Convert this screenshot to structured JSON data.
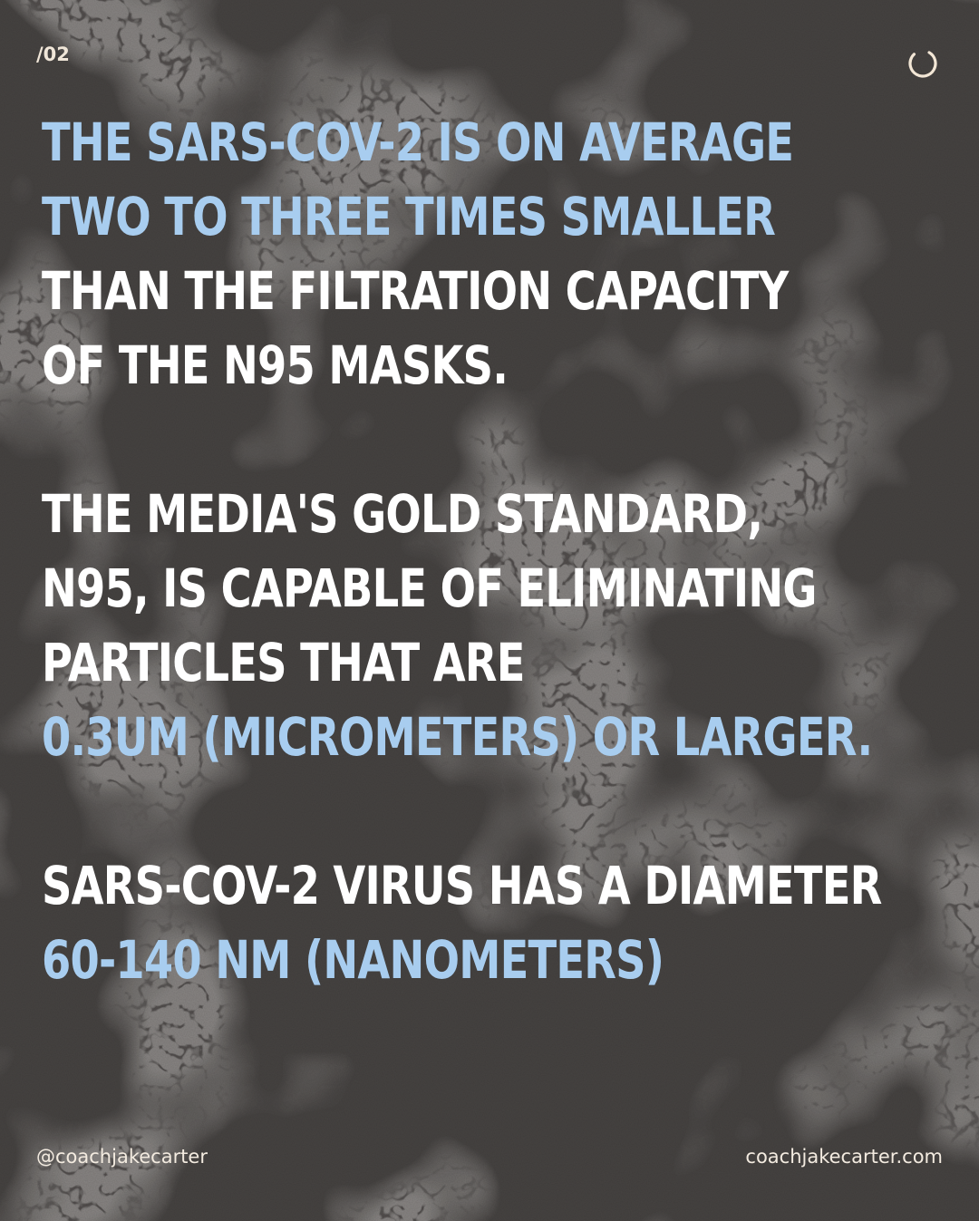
{
  "page": {
    "number": "/02"
  },
  "headline": {
    "lines": [
      {
        "text": "THE SARS-COV-2 IS ON AVERAGE",
        "color": "#a8cdef"
      },
      {
        "text": "TWO TO THREE TIMES SMALLER",
        "color": "#a8cdef"
      },
      {
        "text": "THAN THE FILTRATION CAPACITY",
        "color": "#ffffff"
      },
      {
        "text": "OF THE N95 MASKS.",
        "color": "#ffffff"
      }
    ]
  },
  "paragraph2": {
    "lines": [
      {
        "text": "THE  MEDIA'S GOLD STANDARD,",
        "color": "#ffffff"
      },
      {
        "text": "N95, IS CAPABLE OF ELIMINATING",
        "color": "#ffffff"
      },
      {
        "text": "PARTICLES THAT ARE",
        "color": "#ffffff"
      },
      {
        "text": "0.3UM (MICROMETERS) OR LARGER.",
        "color": "#a8cdef"
      }
    ]
  },
  "paragraph3": {
    "lines": [
      {
        "text": "SARS-COV-2 VIRUS HAS A DIAMETER",
        "color": "#ffffff"
      },
      {
        "text": "60-140 NM (NANOMETERS)",
        "color": "#a8cdef"
      }
    ]
  },
  "footer": {
    "handle": "@coachjakecarter",
    "website": "coachjakecarter.com"
  },
  "icons": {
    "loader": "loading-ring-icon"
  },
  "colors": {
    "accent_blue": "#a8cdef",
    "text_white": "#ffffff",
    "background": "#4a4746"
  }
}
